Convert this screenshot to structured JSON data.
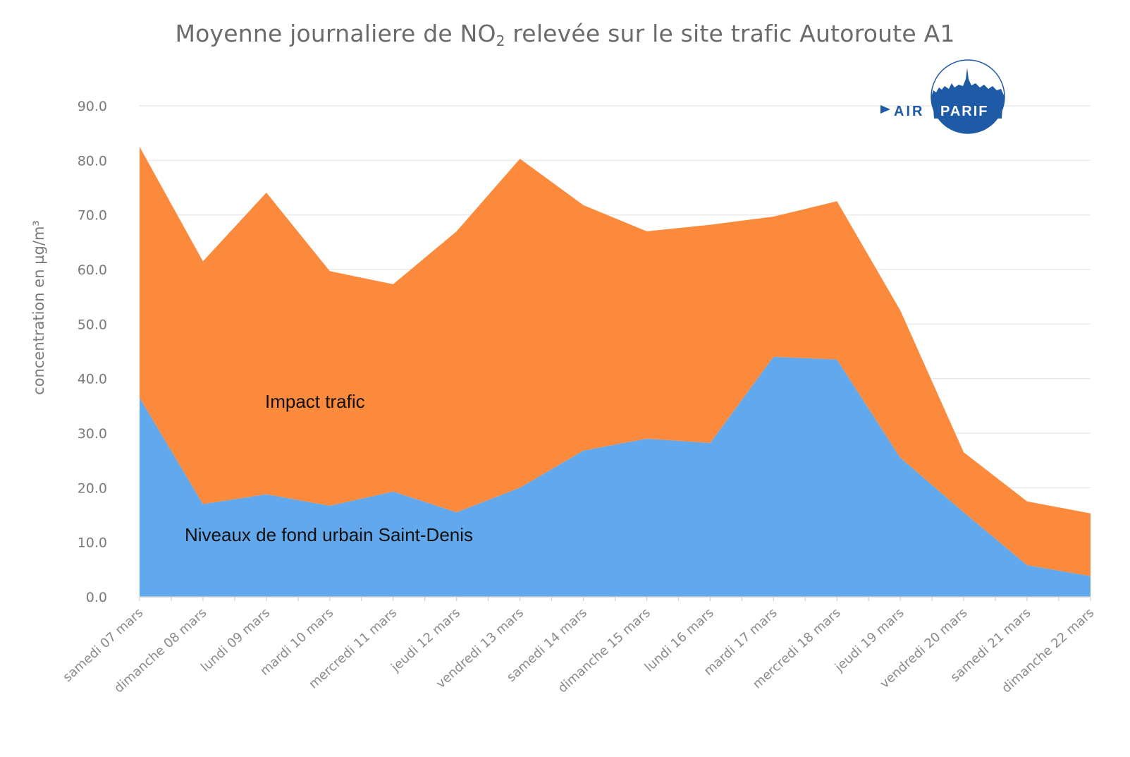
{
  "chart_data": {
    "type": "area",
    "stacked": true,
    "title_prefix": "Moyenne journaliere de NO",
    "title_subscript": "2",
    "title_suffix": " relevée sur le site trafic Autoroute A1",
    "ylabel": "concentration en µg/m³",
    "xlabel": "",
    "ylim": [
      0,
      90
    ],
    "y_ticks": [
      "0.0",
      "10.0",
      "20.0",
      "30.0",
      "40.0",
      "50.0",
      "60.0",
      "70.0",
      "80.0",
      "90.0"
    ],
    "grid": true,
    "categories": [
      "samedi 07 mars",
      "dimanche 08 mars",
      "lundi 09 mars",
      "mardi 10 mars",
      "mercredi 11 mars",
      "jeudi 12 mars",
      "vendredi 13 mars",
      "samedi 14 mars",
      "dimanche 15 mars",
      "lundi 16 mars",
      "mardi 17 mars",
      "mercredi 18 mars",
      "jeudi 19 mars",
      "vendredi 20 mars",
      "samedi 21 mars",
      "dimanche 22 mars"
    ],
    "series": [
      {
        "name": "Niveaux de fond urbain Saint-Denis",
        "color": "#62a8ec",
        "values": [
          36.5,
          17.0,
          18.8,
          16.7,
          19.3,
          15.5,
          20.0,
          26.8,
          29.0,
          28.2,
          44.0,
          43.5,
          25.5,
          15.5,
          5.8,
          3.8
        ]
      },
      {
        "name": "Impact trafic",
        "color": "#fb8a3c",
        "values": [
          46.0,
          44.5,
          55.3,
          43.0,
          38.0,
          51.5,
          60.3,
          45.0,
          38.0,
          40.0,
          25.7,
          29.0,
          27.0,
          11.0,
          11.7,
          11.5
        ]
      }
    ]
  },
  "logo": {
    "left": "AIR",
    "right": "PARIF",
    "color": "#1f5aa6"
  }
}
